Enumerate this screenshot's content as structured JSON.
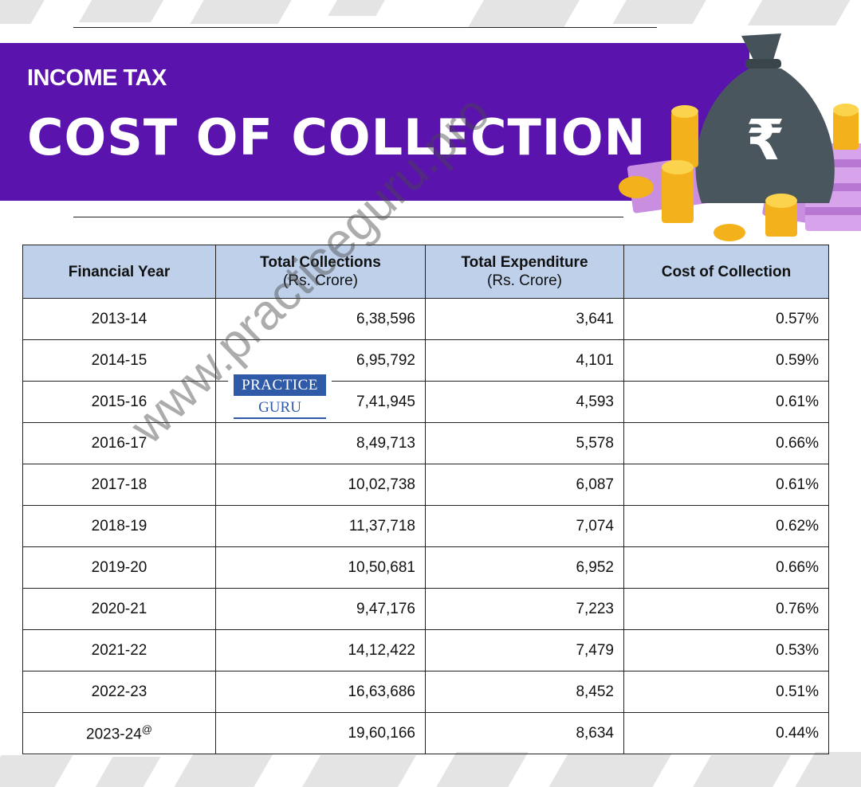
{
  "banner": {
    "subtitle": "INCOME TAX",
    "title": "COST OF COLLECTION",
    "icon_symbol": "₹",
    "color": "#5a14ad"
  },
  "table": {
    "headers": {
      "year": "Financial Year",
      "collections": "Total Collections",
      "collections_unit": "(Rs. Crore)",
      "expenditure": "Total Expenditure",
      "expenditure_unit": "(Rs. Crore)",
      "cost": "Cost of Collection"
    },
    "rows": [
      {
        "year": "2013-14",
        "mark": "",
        "collections": "6,38,596",
        "expenditure": "3,641",
        "cost": "0.57%"
      },
      {
        "year": "2014-15",
        "mark": "",
        "collections": "6,95,792",
        "expenditure": "4,101",
        "cost": "0.59%"
      },
      {
        "year": "2015-16",
        "mark": "",
        "collections": "7,41,945",
        "expenditure": "4,593",
        "cost": "0.61%"
      },
      {
        "year": "2016-17",
        "mark": "",
        "collections": "8,49,713",
        "expenditure": "5,578",
        "cost": "0.66%"
      },
      {
        "year": "2017-18",
        "mark": "",
        "collections": "10,02,738",
        "expenditure": "6,087",
        "cost": "0.61%"
      },
      {
        "year": "2018-19",
        "mark": "",
        "collections": "11,37,718",
        "expenditure": "7,074",
        "cost": "0.62%"
      },
      {
        "year": "2019-20",
        "mark": "",
        "collections": "10,50,681",
        "expenditure": "6,952",
        "cost": "0.66%"
      },
      {
        "year": "2020-21",
        "mark": "",
        "collections": "9,47,176",
        "expenditure": "7,223",
        "cost": "0.76%"
      },
      {
        "year": "2021-22",
        "mark": "",
        "collections": "14,12,422",
        "expenditure": "7,479",
        "cost": "0.53%"
      },
      {
        "year": "2022-23",
        "mark": "",
        "collections": "16,63,686",
        "expenditure": "8,452",
        "cost": "0.51%"
      },
      {
        "year": "2023-24",
        "mark": "@",
        "collections": "19,60,166",
        "expenditure": "8,634",
        "cost": "0.44%"
      }
    ],
    "header_color": "#bed0ea"
  },
  "logo": {
    "top": "PRACTICE",
    "bottom": "GURU",
    "color": "#2f5aa8"
  },
  "watermark": "www.practiceguru.pro"
}
